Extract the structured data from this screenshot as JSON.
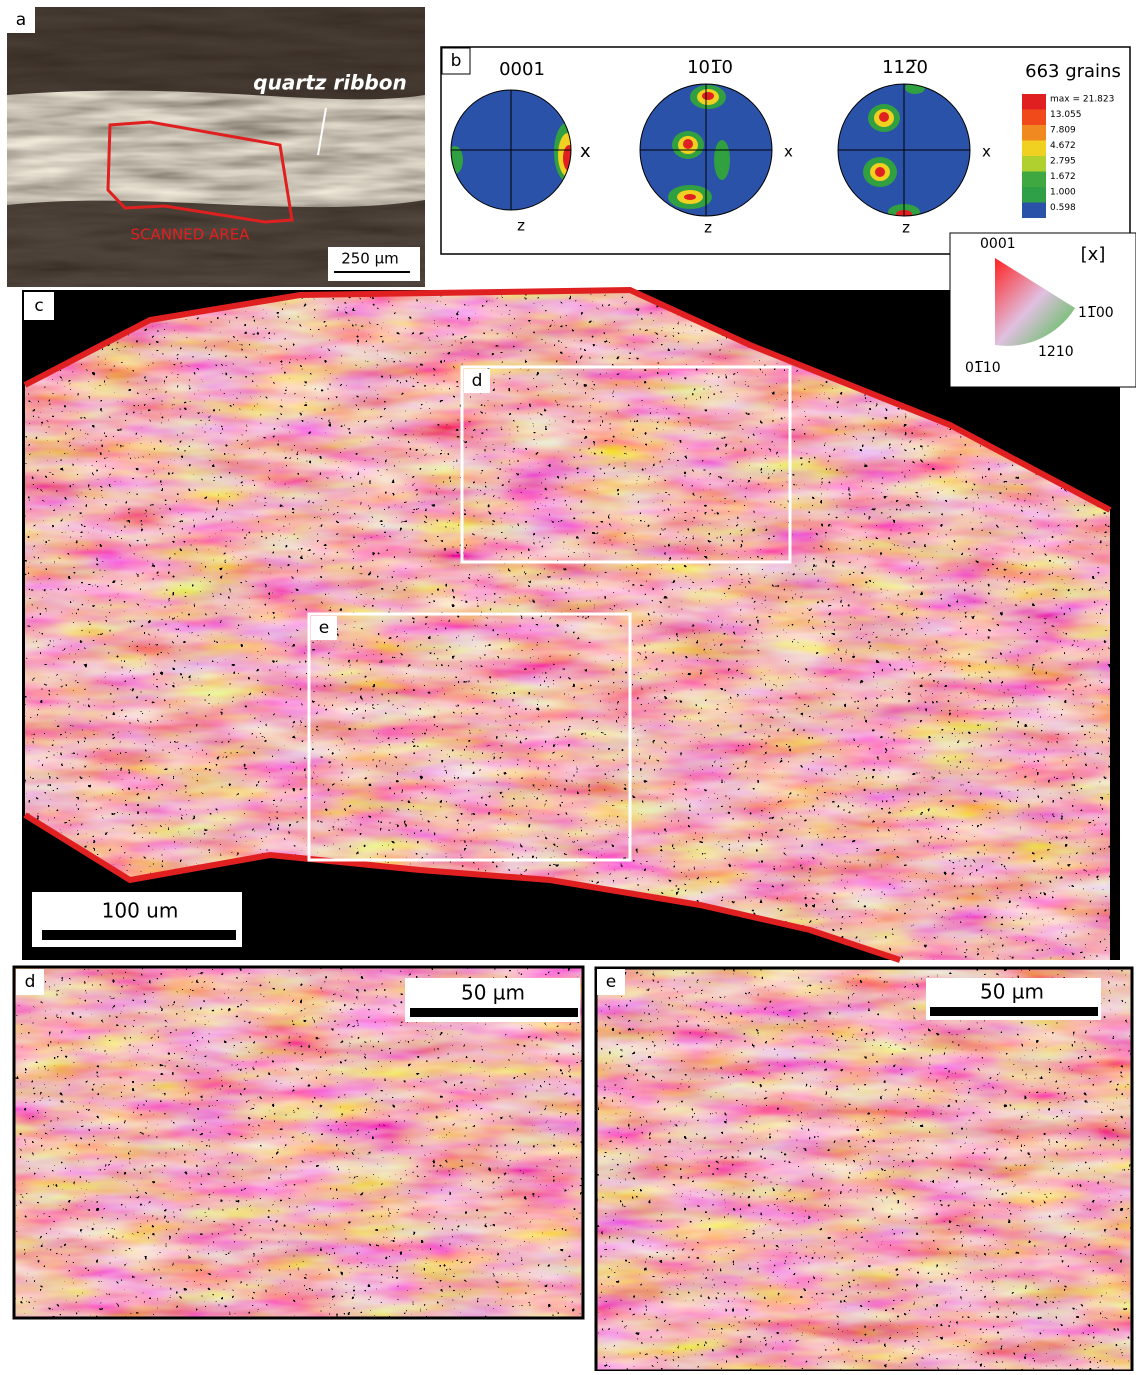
{
  "panels": {
    "a": {
      "label": "a",
      "annotation": "quartz ribbon",
      "region_label": "SCANNED AREA",
      "scale_bar": "250 µm"
    },
    "b": {
      "label": "b",
      "pole_figures": [
        {
          "title": "0001",
          "x_axis": "x",
          "z_axis": "z"
        },
        {
          "title": "101̅0",
          "x_axis": "x",
          "z_axis": "z"
        },
        {
          "title": "112̅0",
          "x_axis": "x",
          "z_axis": "z"
        }
      ],
      "grain_count": "663 grains",
      "color_scale": [
        "max = 21.823",
        "13.055",
        "7.809",
        "4.672",
        "2.795",
        "1.672",
        "1.000",
        "0.598"
      ]
    },
    "ipf": {
      "direction": "[x]",
      "top": "0001",
      "right": "11̅00",
      "middle": "1210",
      "bottom": "01̅10"
    },
    "c": {
      "label": "c",
      "scale_bar": "100 um",
      "inset_d": "d",
      "inset_e": "e"
    },
    "d": {
      "label": "d",
      "scale_bar": "50 µm"
    },
    "e": {
      "label": "e",
      "scale_bar": "50 µm"
    }
  }
}
